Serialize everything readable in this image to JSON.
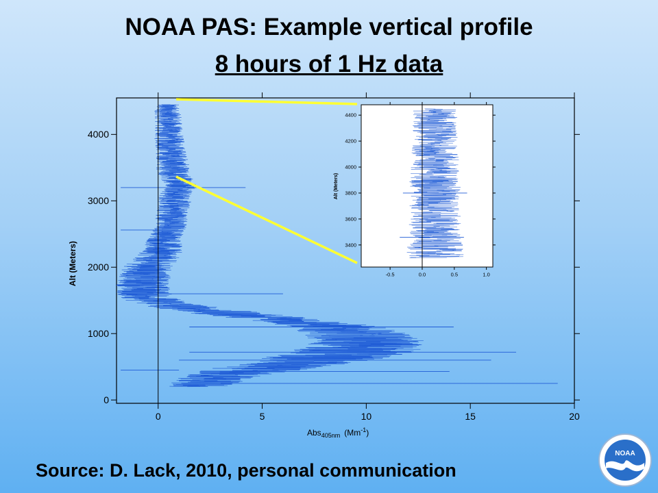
{
  "title_line1": "NOAA PAS: Example vertical profile",
  "title_line2": "8 hours of 1 Hz data",
  "source": "Source:  D. Lack, 2010, personal communication",
  "logo_text": "NOAA",
  "colors": {
    "trace": "#1f5bd6",
    "zoom_lines": "#ffff33",
    "axis": "#000000"
  },
  "chart_data": [
    {
      "type": "line",
      "title": "",
      "xlabel": "Abs",
      "xlabel_sub": "405nm",
      "xlabel_units": "(Mm",
      "xlabel_units_sup": "-1",
      "xlabel_units_end": ")",
      "ylabel": "Alt (Meters)",
      "xlim": [
        -2,
        20
      ],
      "ylim": [
        -50,
        4550
      ],
      "x_ticks": [
        "0",
        "5",
        "10",
        "15",
        "20"
      ],
      "y_ticks": [
        "0",
        "1000",
        "2000",
        "3000",
        "4000"
      ],
      "series": [
        {
          "profile": [
            [
              4450,
              0.4
            ],
            [
              4200,
              0.5
            ],
            [
              4000,
              0.5
            ],
            [
              3800,
              0.6
            ],
            [
              3600,
              0.7
            ],
            [
              3400,
              0.7
            ],
            [
              3300,
              1.0
            ],
            [
              3200,
              1.2
            ],
            [
              3100,
              0.8
            ],
            [
              3000,
              0.8
            ],
            [
              2800,
              0.7
            ],
            [
              2600,
              0.6
            ],
            [
              2400,
              0.3
            ],
            [
              2200,
              0.1
            ],
            [
              2000,
              -0.5
            ],
            [
              1800,
              -0.7
            ],
            [
              1600,
              -0.7
            ],
            [
              1500,
              -0.2
            ],
            [
              1400,
              1.2
            ],
            [
              1300,
              3.5
            ],
            [
              1200,
              6.5
            ],
            [
              1100,
              8.5
            ],
            [
              1000,
              9.5
            ],
            [
              900,
              10.0
            ],
            [
              800,
              10.0
            ],
            [
              700,
              9.0
            ],
            [
              600,
              7.5
            ],
            [
              500,
              5.5
            ],
            [
              400,
              3.5
            ],
            [
              300,
              2.5
            ],
            [
              200,
              1.8
            ]
          ],
          "spread": [
            [
              4450,
              0.6
            ],
            [
              4000,
              0.7
            ],
            [
              3500,
              0.8
            ],
            [
              3000,
              0.8
            ],
            [
              2500,
              0.8
            ],
            [
              2000,
              1.2
            ],
            [
              1500,
              1.4
            ],
            [
              1000,
              2.5
            ],
            [
              700,
              3.2
            ],
            [
              500,
              2.5
            ],
            [
              200,
              1.5
            ]
          ]
        }
      ],
      "spikes": [
        {
          "y": 3200,
          "x1": -1.8,
          "x2": 4.2
        },
        {
          "y": 2560,
          "x1": -1.8,
          "x2": 0.5
        },
        {
          "y": 1600,
          "x1": -1.8,
          "x2": 6
        },
        {
          "y": 1100,
          "x1": 1.5,
          "x2": 14.2
        },
        {
          "y": 720,
          "x1": 1.5,
          "x2": 17.2
        },
        {
          "y": 600,
          "x1": 1.0,
          "x2": 16.0
        },
        {
          "y": 430,
          "x1": 2.0,
          "x2": 14.0
        },
        {
          "y": 250,
          "x1": 3.0,
          "x2": 19.2
        },
        {
          "y": 450,
          "x1": -1.8,
          "x2": 1.0
        }
      ],
      "grid": false,
      "legend": "none"
    },
    {
      "type": "line",
      "title": "",
      "xlabel": "",
      "ylabel": "Alt (Meters)",
      "xlim": [
        -0.95,
        1.1
      ],
      "ylim": [
        3230,
        4480
      ],
      "x_ticks": [
        "-0.5",
        "0.0",
        "0.5",
        "1.0"
      ],
      "y_ticks": [
        "3400",
        "3600",
        "3800",
        "4000",
        "4200",
        "4400"
      ],
      "series": [
        {
          "profile": [
            [
              4450,
              0.2
            ],
            [
              4200,
              0.2
            ],
            [
              3900,
              0.2
            ],
            [
              3600,
              0.2
            ],
            [
              3300,
              0.2
            ]
          ],
          "spread": [
            [
              4450,
              0.35
            ],
            [
              4200,
              0.35
            ],
            [
              3900,
              0.4
            ],
            [
              3600,
              0.4
            ],
            [
              3300,
              0.45
            ]
          ]
        }
      ],
      "spikes": [
        {
          "y": 3800,
          "x1": -0.3,
          "x2": 0.7
        },
        {
          "y": 3460,
          "x1": -0.35,
          "x2": 0.65
        }
      ],
      "grid": false,
      "legend": "none"
    }
  ]
}
